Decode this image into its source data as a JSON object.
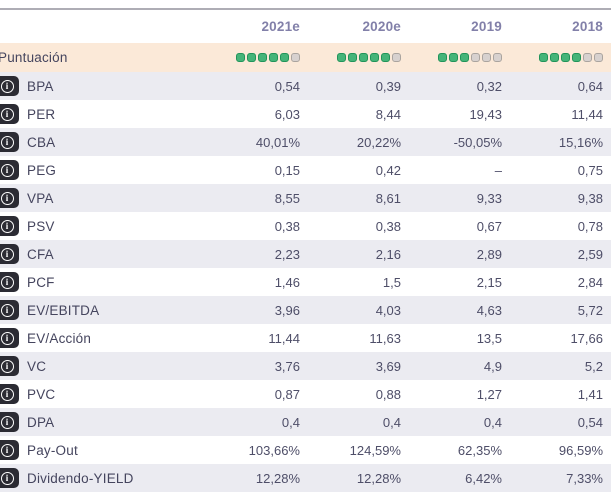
{
  "table": {
    "columns": [
      "2021e",
      "2020e",
      "2019",
      "2018"
    ],
    "score_row": {
      "label": "Puntuación",
      "max_score": 6,
      "scores": [
        5,
        5,
        3,
        4
      ]
    },
    "rows": [
      {
        "label": "BPA",
        "values": [
          "0,54",
          "0,39",
          "0,32",
          "0,64"
        ]
      },
      {
        "label": "PER",
        "values": [
          "6,03",
          "8,44",
          "19,43",
          "11,44"
        ]
      },
      {
        "label": "CBA",
        "values": [
          "40,01%",
          "20,22%",
          "-50,05%",
          "15,16%"
        ]
      },
      {
        "label": "PEG",
        "values": [
          "0,15",
          "0,42",
          "–",
          "0,75"
        ]
      },
      {
        "label": "VPA",
        "values": [
          "8,55",
          "8,61",
          "9,33",
          "9,38"
        ]
      },
      {
        "label": "PSV",
        "values": [
          "0,38",
          "0,38",
          "0,67",
          "0,78"
        ]
      },
      {
        "label": "CFA",
        "values": [
          "2,23",
          "2,16",
          "2,89",
          "2,59"
        ]
      },
      {
        "label": "PCF",
        "values": [
          "1,46",
          "1,5",
          "2,15",
          "2,84"
        ]
      },
      {
        "label": "EV/EBITDA",
        "values": [
          "3,96",
          "4,03",
          "4,63",
          "5,72"
        ]
      },
      {
        "label": "EV/Acción",
        "values": [
          "11,44",
          "11,63",
          "13,5",
          "17,66"
        ]
      },
      {
        "label": "VC",
        "values": [
          "3,76",
          "3,69",
          "4,9",
          "5,2"
        ]
      },
      {
        "label": "PVC",
        "values": [
          "0,87",
          "0,88",
          "1,27",
          "1,41"
        ]
      },
      {
        "label": "DPA",
        "values": [
          "0,4",
          "0,4",
          "0,4",
          "0,54"
        ]
      },
      {
        "label": "Pay-Out",
        "values": [
          "103,66%",
          "124,59%",
          "62,35%",
          "96,59%"
        ]
      },
      {
        "label": "Dividendo-YIELD",
        "values": [
          "12,28%",
          "12,28%",
          "6,42%",
          "7,33%"
        ]
      }
    ],
    "info_icon_glyph": "i"
  },
  "colors": {
    "score_row_bg": "#fbe9d8",
    "row_alt_bg": "#ebebf1",
    "score_filled": "#45b479",
    "score_filled_border": "#21945a",
    "score_empty": "#d7d1cf",
    "score_empty_border": "#aaa49f",
    "header_text": "#8280a9",
    "value_text": "#4e4e68",
    "info_badge_bg": "#2b2b33",
    "top_line": "#aeadb5"
  }
}
